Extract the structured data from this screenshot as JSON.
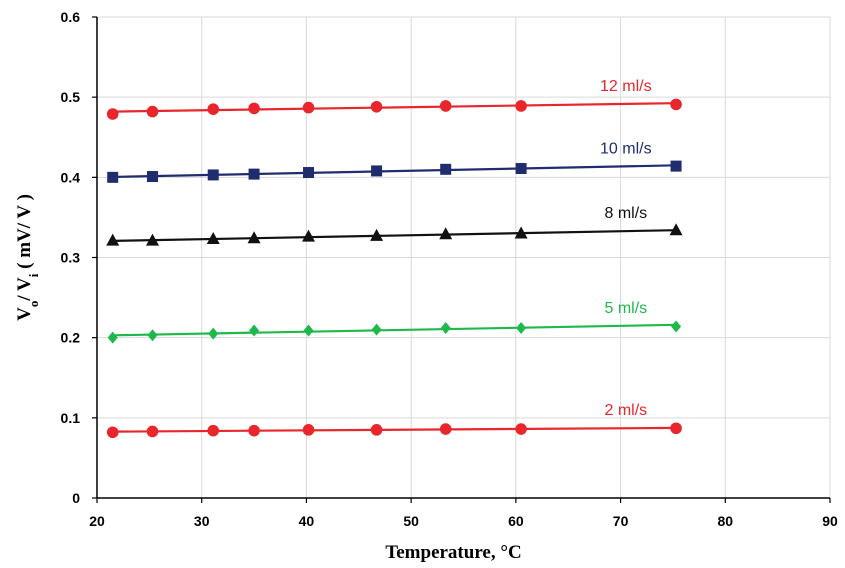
{
  "chart_data": {
    "type": "line",
    "title": "",
    "xlabel": "Temperature, °C",
    "ylabel": "Vo / Vi ( mV/ V )",
    "ylabel_parts": {
      "v1": "V",
      "s1": "o",
      "mid": "/ V",
      "s2": "i",
      "rest": " ( mV/ V )"
    },
    "xlim": [
      20,
      90
    ],
    "ylim": [
      0,
      0.6
    ],
    "xticks": [
      20,
      30,
      40,
      50,
      60,
      70,
      80,
      90
    ],
    "yticks": [
      0,
      0.1,
      0.2,
      0.3,
      0.4,
      0.5,
      0.6
    ],
    "ytick_labels": [
      "0",
      "0.1",
      "0.2",
      "0.3",
      "0.4",
      "0.5",
      "0.6"
    ],
    "grid": true,
    "x": [
      21.5,
      25.3,
      31.1,
      35.0,
      40.2,
      46.7,
      53.3,
      60.5,
      75.3
    ],
    "series": [
      {
        "name": "12 ml/s",
        "color": "#e8262b",
        "marker": "circle",
        "values": [
          0.479,
          0.482,
          0.485,
          0.486,
          0.487,
          0.488,
          0.489,
          0.489,
          0.491
        ]
      },
      {
        "name": "10 ml/s",
        "color": "#1f2d6e",
        "marker": "square",
        "values": [
          0.4,
          0.401,
          0.403,
          0.404,
          0.406,
          0.408,
          0.41,
          0.411,
          0.414
        ]
      },
      {
        "name": "8 ml/s",
        "color": "#111111",
        "marker": "triangle",
        "values": [
          0.321,
          0.321,
          0.323,
          0.324,
          0.326,
          0.327,
          0.329,
          0.33,
          0.334
        ]
      },
      {
        "name": "5 ml/s",
        "color": "#1fb84a",
        "marker": "diamond",
        "values": [
          0.2,
          0.203,
          0.205,
          0.209,
          0.209,
          0.21,
          0.212,
          0.212,
          0.214
        ]
      },
      {
        "name": "2 ml/s",
        "color": "#e8262b",
        "marker": "circle",
        "values": [
          0.082,
          0.083,
          0.084,
          0.084,
          0.085,
          0.085,
          0.086,
          0.086,
          0.087
        ]
      }
    ]
  }
}
